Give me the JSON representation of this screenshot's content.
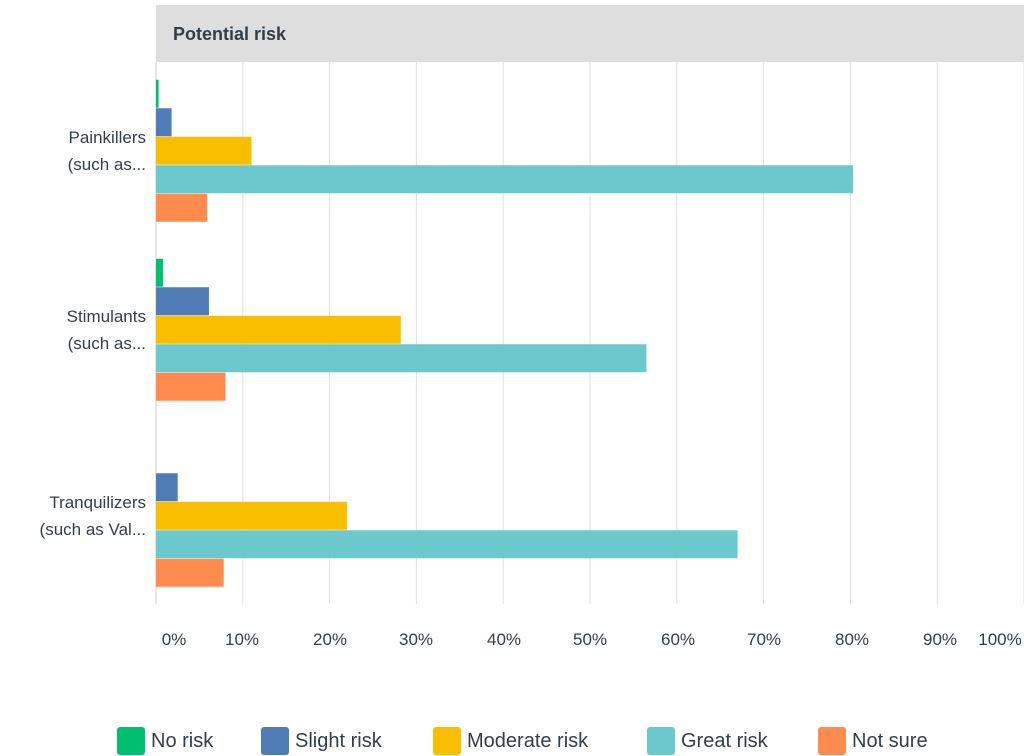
{
  "chart_data": {
    "type": "bar",
    "orientation": "horizontal",
    "title": "Potential risk",
    "categories": [
      "Painkillers (such as...",
      "Stimulants (such as...",
      "Tranquilizers (such as Val..."
    ],
    "category_lines": [
      [
        "Painkillers",
        "(such as..."
      ],
      [
        "Stimulants",
        "(such as..."
      ],
      [
        "Tranquilizers",
        "(such as Val..."
      ]
    ],
    "series": [
      {
        "name": "No risk",
        "color": "#00bf6f",
        "values": [
          0.3,
          0.8,
          0
        ]
      },
      {
        "name": "Slight risk",
        "color": "#507cb6",
        "values": [
          1.8,
          6.1,
          2.5
        ]
      },
      {
        "name": "Moderate risk",
        "color": "#f9be00",
        "values": [
          11.0,
          28.2,
          22.0
        ]
      },
      {
        "name": "Great risk",
        "color": "#6bc8cd",
        "values": [
          80.3,
          56.5,
          67.0
        ]
      },
      {
        "name": "Not sure",
        "color": "#ff8b4f",
        "values": [
          5.9,
          8.0,
          7.8
        ]
      }
    ],
    "xlim": [
      0,
      100
    ],
    "x_ticks": [
      "0%",
      "10%",
      "20%",
      "30%",
      "40%",
      "50%",
      "60%",
      "70%",
      "80%",
      "90%",
      "100%"
    ],
    "grid": true,
    "legend_position": "bottom"
  }
}
